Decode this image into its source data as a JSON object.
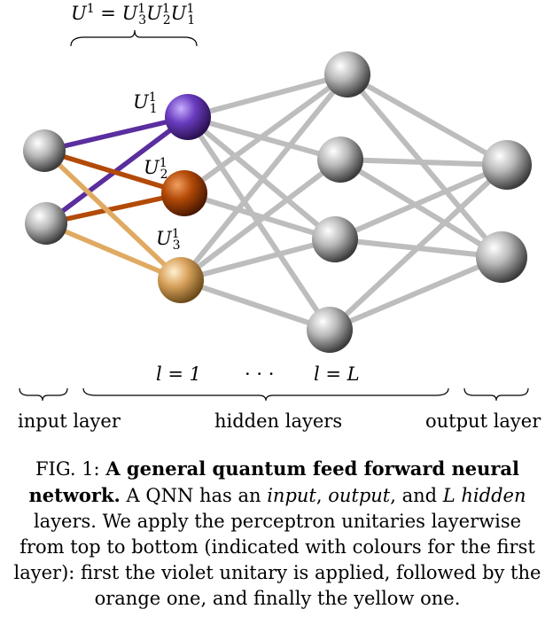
{
  "top_formula": {
    "lhs": "U",
    "lhs_sup": "1",
    "eq": " = ",
    "terms": [
      {
        "base": "U",
        "sub": "3",
        "sup": "1"
      },
      {
        "base": "U",
        "sub": "2",
        "sup": "1"
      },
      {
        "base": "U",
        "sub": "1",
        "sup": "1"
      }
    ]
  },
  "unitary_labels": [
    {
      "base": "U",
      "sub": "1",
      "sup": "1"
    },
    {
      "base": "U",
      "sub": "2",
      "sup": "1"
    },
    {
      "base": "U",
      "sub": "3",
      "sup": "1"
    }
  ],
  "layer_index": {
    "first": "l = 1",
    "dots": "· · ·",
    "last": "l = L"
  },
  "layer_labels": {
    "input": "input layer",
    "hidden": "hidden layers",
    "output": "output layer"
  },
  "caption": {
    "fig": "FIG. 1: ",
    "bold": "A general quantum feed forward neural network.",
    "part1": " A QNN has an ",
    "input": "input",
    "comma1": ", ",
    "output": "output",
    "part2": ", and ",
    "L": "L",
    "space": " ",
    "hidden": "hidden",
    "part3": " layers. We apply the perceptron unitaries layerwise from top to bottom (indicated with colours for the first layer): first the violet unitary is applied, followed by the orange one, and finally the yellow one."
  },
  "colors": {
    "violet": "#5a2e9e",
    "orange": "#b24a08",
    "yellow": "#e0aa62",
    "grey_node": "#a8a8a8",
    "edge": "#c8c8c8"
  }
}
